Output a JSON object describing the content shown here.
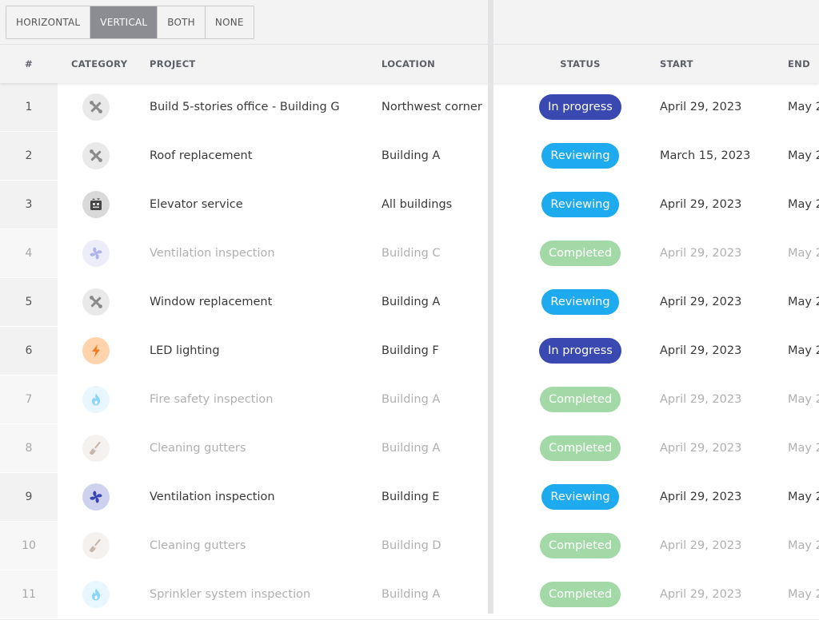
{
  "toolbar": {
    "segments": [
      {
        "label": "HORIZONTAL",
        "active": false
      },
      {
        "label": "VERTICAL",
        "active": true
      },
      {
        "label": "BOTH",
        "active": false
      },
      {
        "label": "NONE",
        "active": false
      }
    ]
  },
  "columns": {
    "num": "#",
    "category": "CATEGORY",
    "project": "PROJECT",
    "location": "LOCATION",
    "status": "STATUS",
    "start": "START",
    "end": "END"
  },
  "status_colors": {
    "In progress": "#3a49b2",
    "Reviewing": "#1eaaef",
    "Completed": "#a3d9a7"
  },
  "category_styles": {
    "tools": {
      "icon": "tools-icon",
      "bg": "#e9e9e9",
      "fg": "#8a8a8a"
    },
    "elevator": {
      "icon": "elevator-icon",
      "bg": "#d9d9d9",
      "fg": "#444444"
    },
    "fan-light": {
      "icon": "fan-icon",
      "bg": "#dfe0f5",
      "fg": "#6c77d6"
    },
    "fan": {
      "icon": "fan-icon",
      "bg": "#cfd2ee",
      "fg": "#3a47b0"
    },
    "lightning": {
      "icon": "lightning-icon",
      "bg": "#ffd4ad",
      "fg": "#f37a1f"
    },
    "fire": {
      "icon": "fire-icon",
      "bg": "#d6f1ff",
      "fg": "#2fb4f5"
    },
    "broom": {
      "icon": "broom-icon",
      "bg": "#ece7e3",
      "fg": "#9a7a66"
    }
  },
  "rows": [
    {
      "num": "1",
      "category": "tools",
      "project": "Build 5-stories office - Building G",
      "location": "Northwest corner",
      "status": "In progress",
      "start": "April 29, 2023",
      "end": "May 2",
      "dim": false
    },
    {
      "num": "2",
      "category": "tools",
      "project": "Roof replacement",
      "location": "Building A",
      "status": "Reviewing",
      "start": "March 15, 2023",
      "end": "May 2",
      "dim": false
    },
    {
      "num": "3",
      "category": "elevator",
      "project": "Elevator service",
      "location": "All buildings",
      "status": "Reviewing",
      "start": "April 29, 2023",
      "end": "May 2",
      "dim": false
    },
    {
      "num": "4",
      "category": "fan-light",
      "project": "Ventilation inspection",
      "location": "Building C",
      "status": "Completed",
      "start": "April 29, 2023",
      "end": "May 2",
      "dim": true
    },
    {
      "num": "5",
      "category": "tools",
      "project": "Window replacement",
      "location": "Building A",
      "status": "Reviewing",
      "start": "April 29, 2023",
      "end": "May 2",
      "dim": false
    },
    {
      "num": "6",
      "category": "lightning",
      "project": "LED lighting",
      "location": "Building F",
      "status": "In progress",
      "start": "April 29, 2023",
      "end": "May 2",
      "dim": false
    },
    {
      "num": "7",
      "category": "fire",
      "project": "Fire safety inspection",
      "location": "Building A",
      "status": "Completed",
      "start": "April 29, 2023",
      "end": "May 2",
      "dim": true
    },
    {
      "num": "8",
      "category": "broom",
      "project": "Cleaning gutters",
      "location": "Building A",
      "status": "Completed",
      "start": "April 29, 2023",
      "end": "May 2",
      "dim": true
    },
    {
      "num": "9",
      "category": "fan",
      "project": "Ventilation inspection",
      "location": "Building E",
      "status": "Reviewing",
      "start": "April 29, 2023",
      "end": "May 2",
      "dim": false
    },
    {
      "num": "10",
      "category": "broom",
      "project": "Cleaning gutters",
      "location": "Building D",
      "status": "Completed",
      "start": "April 29, 2023",
      "end": "May 2",
      "dim": true
    },
    {
      "num": "11",
      "category": "fire",
      "project": "Sprinkler system inspection",
      "location": "Building A",
      "status": "Completed",
      "start": "April 29, 2023",
      "end": "May 2",
      "dim": true
    }
  ]
}
